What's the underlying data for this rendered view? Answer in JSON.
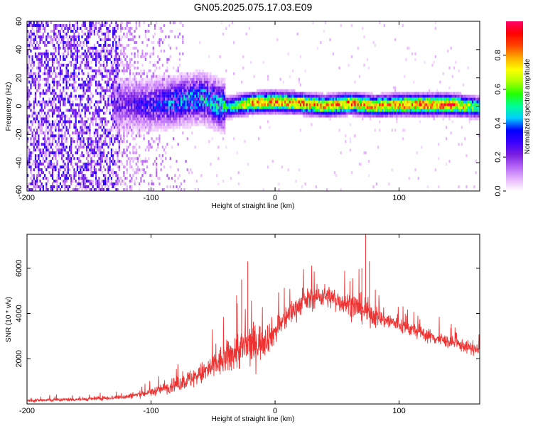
{
  "title": "GN05.2025.075.17.03.E09",
  "chart_data": [
    {
      "type": "heatmap",
      "name": "spectrogram",
      "xlabel": "Height of straight line (km)",
      "ylabel": "Frequency (Hz)",
      "xlim": [
        -200,
        165
      ],
      "ylim": [
        -60,
        60
      ],
      "xticks": [
        -200,
        -100,
        0,
        100
      ],
      "yticks": [
        -60,
        -40,
        -20,
        0,
        20,
        40,
        60
      ],
      "colorbar": {
        "label": "Normalized spectral amplitude",
        "range": [
          0,
          1
        ],
        "ticks": [
          0.0,
          0.2,
          0.4,
          0.6,
          0.8
        ],
        "tick_labels": [
          "0.0",
          "0.2",
          "0.4",
          "0.6",
          "0.8"
        ],
        "colors": [
          "#ffffff",
          "#e6b3ff",
          "#b466f5",
          "#7a1fe0",
          "#3b00ff",
          "#0000ff",
          "#00ccff",
          "#00ff99",
          "#22ff00",
          "#aaff00",
          "#ffff00",
          "#ffaa00",
          "#ff4400",
          "#ff0000",
          "#ff0066"
        ]
      },
      "noise_region_x": [
        -200,
        -125
      ],
      "ridge": [
        {
          "x": -130,
          "f": 0,
          "amp": 0.25
        },
        {
          "x": -100,
          "f": 0,
          "amp": 0.35
        },
        {
          "x": -80,
          "f": 2,
          "amp": 0.45
        },
        {
          "x": -60,
          "f": 5,
          "amp": 0.5
        },
        {
          "x": -40,
          "f": -2,
          "amp": 0.55
        },
        {
          "x": -20,
          "f": 1,
          "amp": 0.85
        },
        {
          "x": 0,
          "f": 2,
          "amp": 0.9
        },
        {
          "x": 20,
          "f": 1,
          "amp": 0.9
        },
        {
          "x": 40,
          "f": -1,
          "amp": 0.85
        },
        {
          "x": 60,
          "f": 1,
          "amp": 0.9
        },
        {
          "x": 80,
          "f": -1,
          "amp": 0.85
        },
        {
          "x": 100,
          "f": 0,
          "amp": 0.9
        },
        {
          "x": 120,
          "f": 0,
          "amp": 0.95
        },
        {
          "x": 140,
          "f": 0,
          "amp": 0.95
        },
        {
          "x": 165,
          "f": -2,
          "amp": 0.6
        }
      ]
    },
    {
      "type": "line",
      "name": "snr",
      "xlabel": "Height of straight line (km)",
      "ylabel": "SNR (10 * v/v)",
      "xlim": [
        -200,
        165
      ],
      "ylim": [
        0,
        7500
      ],
      "xticks": [
        -200,
        -100,
        0,
        100
      ],
      "yticks": [
        2000,
        4000,
        6000
      ],
      "color": "#ee3333",
      "envelope": {
        "x": [
          -200,
          -150,
          -120,
          -100,
          -80,
          -60,
          -40,
          -30,
          -20,
          -10,
          0,
          10,
          20,
          30,
          40,
          50,
          60,
          70,
          80,
          90,
          100,
          110,
          120,
          130,
          140,
          150,
          165
        ],
        "mean": [
          150,
          220,
          320,
          520,
          850,
          1300,
          2000,
          2400,
          2600,
          2800,
          3200,
          3900,
          4400,
          4700,
          4800,
          4600,
          4400,
          4200,
          3900,
          3700,
          3500,
          3300,
          3100,
          2900,
          2750,
          2600,
          2350
        ],
        "spread": [
          130,
          150,
          200,
          320,
          550,
          900,
          1300,
          1600,
          1700,
          1400,
          1100,
          1000,
          900,
          900,
          900,
          900,
          1000,
          1100,
          900,
          700,
          650,
          600,
          550,
          550,
          500,
          500,
          500
        ]
      },
      "spikes": [
        {
          "x": -22,
          "y": 6300
        },
        {
          "x": -27,
          "y": 5500
        },
        {
          "x": -31,
          "y": 4800
        },
        {
          "x": 73,
          "y": 7500
        },
        {
          "x": 76,
          "y": 6300
        },
        {
          "x": 70,
          "y": 6000
        }
      ]
    }
  ]
}
